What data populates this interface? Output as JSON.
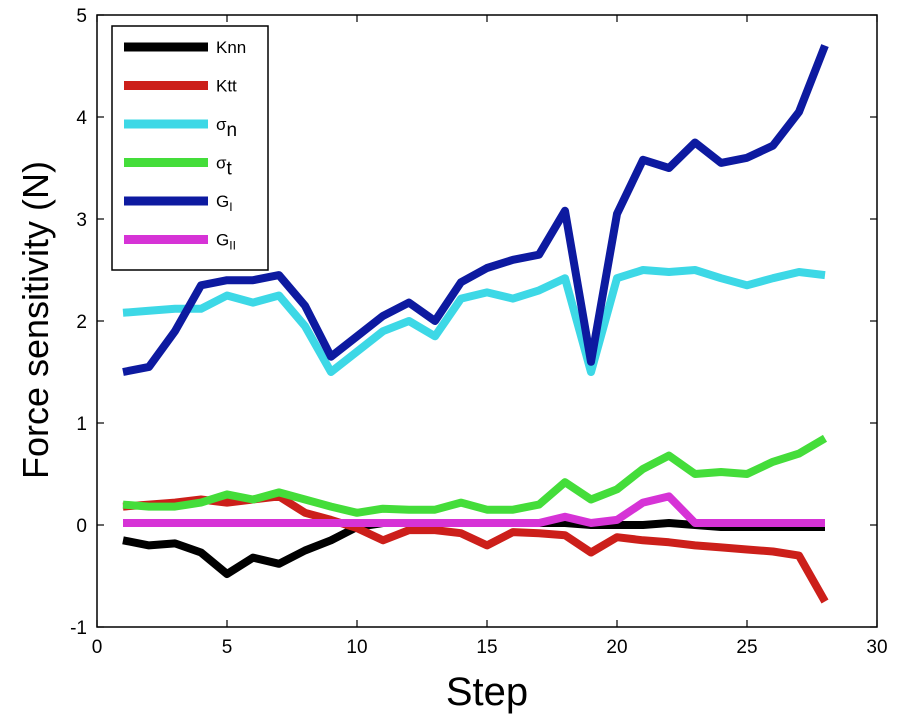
{
  "chart_data": {
    "type": "line",
    "xlabel": "Step",
    "ylabel": "Force sensitivity (N)",
    "xlim": [
      0,
      30
    ],
    "ylim": [
      -1,
      5
    ],
    "xticks": [
      0,
      5,
      10,
      15,
      20,
      25,
      30
    ],
    "yticks": [
      -1,
      0,
      1,
      2,
      3,
      4,
      5
    ],
    "grid": false,
    "legend_position": "top-left",
    "x": [
      1,
      2,
      3,
      4,
      5,
      6,
      7,
      8,
      9,
      10,
      11,
      12,
      13,
      14,
      15,
      16,
      17,
      18,
      19,
      20,
      21,
      22,
      23,
      24,
      25,
      26,
      27,
      28
    ],
    "series": [
      {
        "name": "Knn",
        "legend_main": "Knn",
        "legend_sub": "",
        "color": "#000000",
        "values": [
          -0.15,
          -0.2,
          -0.18,
          -0.27,
          -0.48,
          -0.32,
          -0.38,
          -0.25,
          -0.15,
          -0.02,
          0.02,
          0.02,
          0.02,
          0.02,
          0.02,
          0.02,
          0.02,
          0.02,
          0.0,
          0.0,
          0.0,
          0.02,
          0.0,
          -0.02,
          -0.02,
          -0.02,
          -0.02,
          -0.02
        ]
      },
      {
        "name": "Ktt",
        "legend_main": "Ktt",
        "legend_sub": "",
        "color": "#cc1f1a",
        "values": [
          0.18,
          0.2,
          0.22,
          0.25,
          0.22,
          0.25,
          0.28,
          0.12,
          0.05,
          -0.03,
          -0.15,
          -0.05,
          -0.05,
          -0.08,
          -0.2,
          -0.07,
          -0.08,
          -0.1,
          -0.27,
          -0.12,
          -0.15,
          -0.17,
          -0.2,
          -0.22,
          -0.24,
          -0.26,
          -0.3,
          -0.75
        ]
      },
      {
        "name": "σn",
        "legend_main": "σ",
        "legend_sub": "n",
        "color": "#3dd8e6",
        "values": [
          2.08,
          2.1,
          2.12,
          2.12,
          2.25,
          2.18,
          2.25,
          1.95,
          1.5,
          1.7,
          1.9,
          2.0,
          1.85,
          2.22,
          2.28,
          2.22,
          2.3,
          2.42,
          1.5,
          2.42,
          2.5,
          2.48,
          2.5,
          2.42,
          2.35,
          2.42,
          2.48,
          2.45
        ]
      },
      {
        "name": "σt",
        "legend_main": "σ",
        "legend_sub": "t",
        "color": "#44dd3a",
        "values": [
          0.2,
          0.18,
          0.18,
          0.22,
          0.3,
          0.25,
          0.32,
          0.25,
          0.18,
          0.12,
          0.16,
          0.15,
          0.15,
          0.22,
          0.15,
          0.15,
          0.2,
          0.42,
          0.25,
          0.35,
          0.55,
          0.68,
          0.5,
          0.52,
          0.5,
          0.62,
          0.7,
          0.85
        ]
      },
      {
        "name": "GI",
        "legend_main": "G",
        "legend_sub": "I",
        "color": "#0d1aa0",
        "values": [
          1.5,
          1.55,
          1.9,
          2.35,
          2.4,
          2.4,
          2.45,
          2.15,
          1.65,
          1.85,
          2.05,
          2.18,
          2.0,
          2.38,
          2.52,
          2.6,
          2.65,
          3.08,
          1.6,
          3.05,
          3.58,
          3.5,
          3.75,
          3.55,
          3.6,
          3.72,
          4.05,
          4.7
        ]
      },
      {
        "name": "GII",
        "legend_main": "G",
        "legend_sub": "II",
        "color": "#d633d6",
        "values": [
          0.02,
          0.02,
          0.02,
          0.02,
          0.02,
          0.02,
          0.02,
          0.02,
          0.02,
          0.02,
          0.02,
          0.02,
          0.02,
          0.02,
          0.02,
          0.02,
          0.02,
          0.08,
          0.02,
          0.05,
          0.22,
          0.28,
          0.02,
          0.02,
          0.02,
          0.02,
          0.02,
          0.02
        ]
      }
    ]
  }
}
